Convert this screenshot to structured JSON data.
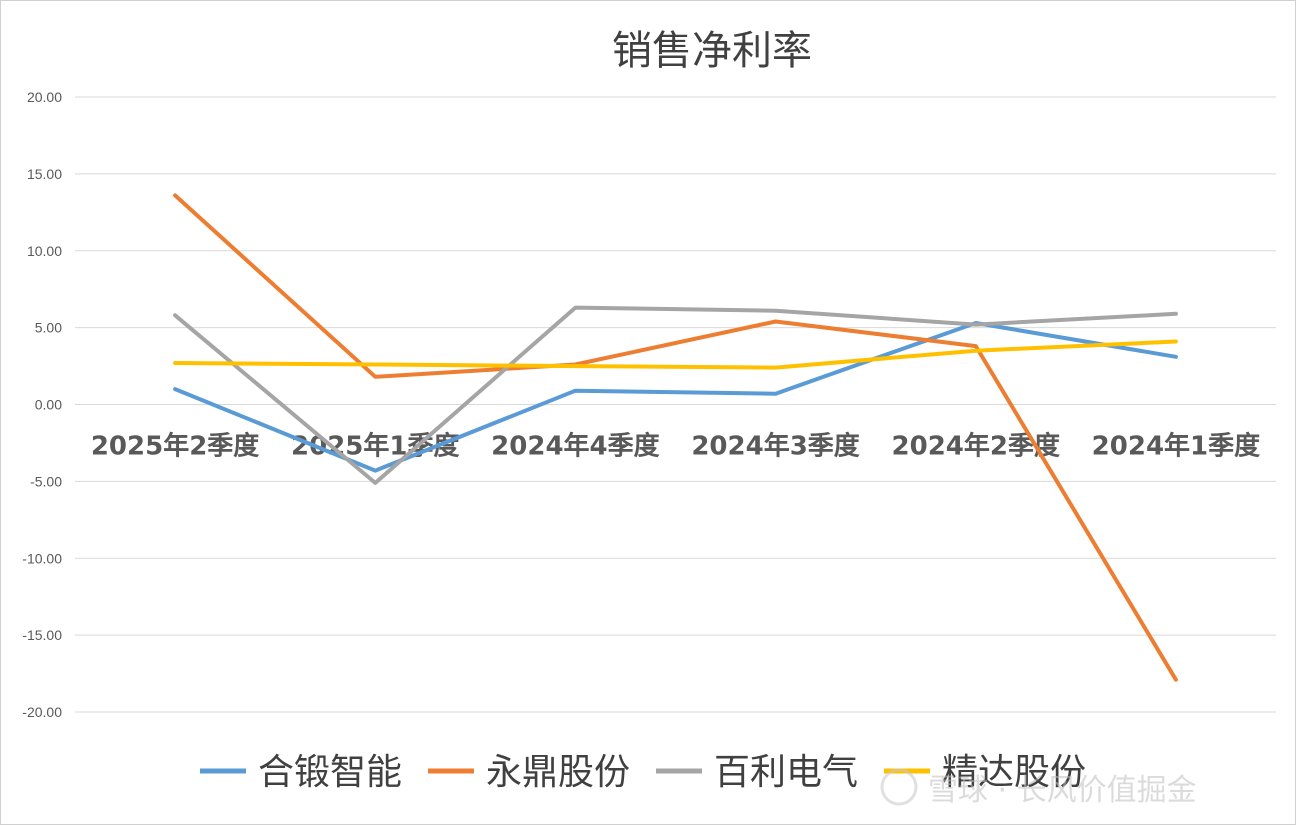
{
  "chart_data": {
    "type": "line",
    "title": "销售净利率",
    "xlabel": "",
    "ylabel": "",
    "categories": [
      "2025年2季度",
      "2025年1季度",
      "2024年4季度",
      "2024年3季度",
      "2024年2季度",
      "2024年1季度"
    ],
    "yticks": [
      "20.00",
      "15.00",
      "10.00",
      "5.00",
      "0.00",
      "-5.00",
      "-10.00",
      "-15.00",
      "-20.00"
    ],
    "ylim": [
      -20,
      20
    ],
    "grid": true,
    "legend_position": "bottom",
    "series": [
      {
        "name": "合锻智能",
        "color": "#5b9bd5",
        "values": [
          1.0,
          -4.3,
          0.9,
          0.7,
          5.3,
          3.1
        ]
      },
      {
        "name": "永鼎股份",
        "color": "#ed7d31",
        "values": [
          13.6,
          1.8,
          2.6,
          5.4,
          3.8,
          -17.9
        ]
      },
      {
        "name": "百利电气",
        "color": "#a5a5a5",
        "values": [
          5.8,
          -5.1,
          6.3,
          6.1,
          5.2,
          5.9
        ]
      },
      {
        "name": "精达股份",
        "color": "#ffc000",
        "values": [
          2.7,
          2.6,
          2.5,
          2.4,
          3.5,
          4.1
        ]
      }
    ]
  },
  "watermark": "雪球 · 长风价值掘金"
}
